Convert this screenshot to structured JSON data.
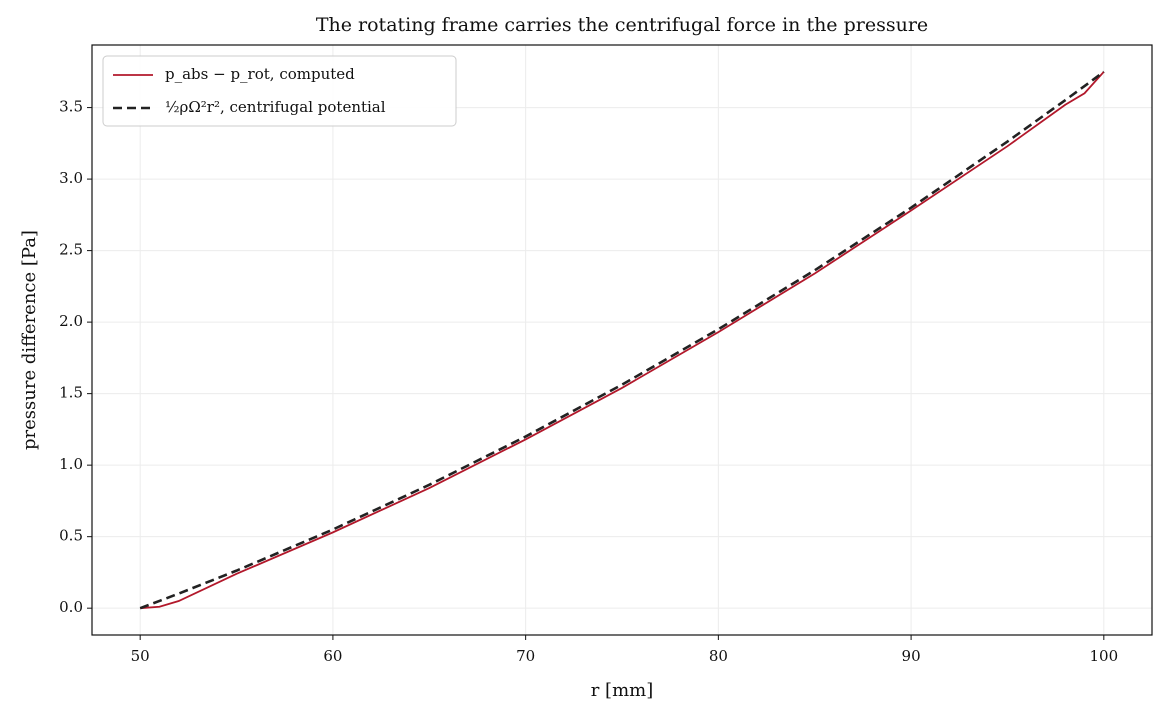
{
  "chart_data": {
    "type": "line",
    "title": "The rotating frame carries the centrifugal force in the pressure",
    "xlabel": "r [mm]",
    "ylabel": "pressure difference [Pa]",
    "x": [
      50,
      51,
      52,
      55,
      60,
      65,
      70,
      75,
      80,
      85,
      90,
      95,
      98,
      99,
      100
    ],
    "series": [
      {
        "name": "p_abs − p_rot, computed",
        "color": "#b2182b",
        "dash": false,
        "values": [
          0,
          0.01,
          0.05,
          0.24,
          0.53,
          0.84,
          1.18,
          1.54,
          1.93,
          2.34,
          2.78,
          3.23,
          3.52,
          3.6,
          3.75
        ]
      },
      {
        "name": "½ρΩ²r², centrifugal potential",
        "color": "#222222",
        "dash": true,
        "values": [
          0,
          0.0505,
          0.102,
          0.2625,
          0.55,
          0.8625,
          1.2,
          1.5625,
          1.95,
          2.3625,
          2.8,
          3.2625,
          3.552,
          3.6505,
          3.75
        ]
      }
    ],
    "xlim": [
      47.5,
      102.5
    ],
    "ylim": [
      -0.1875,
      3.9375
    ],
    "xticks": [
      50,
      60,
      70,
      80,
      90,
      100
    ],
    "yticks": [
      {
        "value": 0,
        "label": "0.0"
      },
      0.5,
      {
        "value": 1,
        "label": "1.0"
      },
      1.5,
      {
        "value": 2,
        "label": "2.0"
      },
      2.5,
      {
        "value": 3,
        "label": "3.0"
      },
      3.5
    ],
    "grid": true,
    "legend": "upper left"
  }
}
